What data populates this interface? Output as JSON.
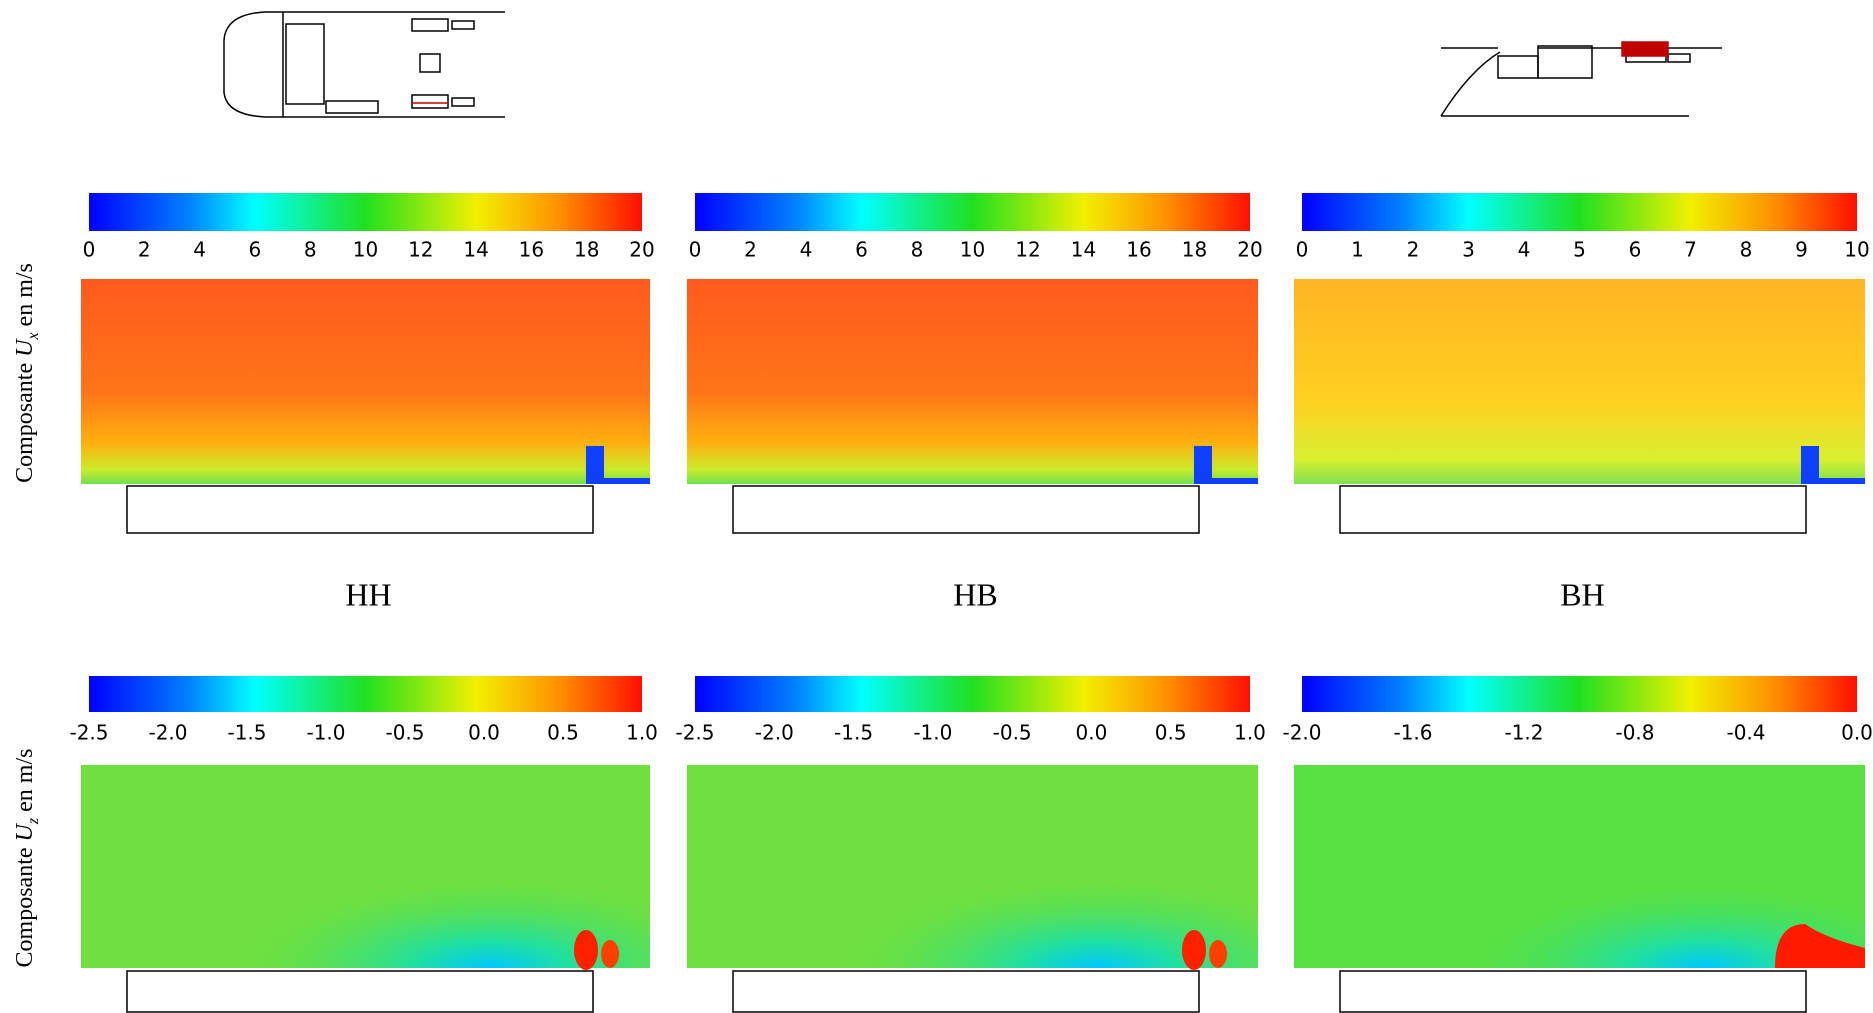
{
  "columns": [
    "HH",
    "HB",
    "BH"
  ],
  "rows": [
    {
      "label": {
        "prefix": "Composante",
        "symbol": "U",
        "subscript": "x",
        "suffix": "en m/s"
      },
      "colorbars": [
        [
          "0",
          "2",
          "4",
          "6",
          "8",
          "10",
          "12",
          "14",
          "16",
          "18",
          "20"
        ],
        [
          "0",
          "2",
          "4",
          "6",
          "8",
          "10",
          "12",
          "14",
          "16",
          "18",
          "20"
        ],
        [
          "0",
          "1",
          "2",
          "3",
          "4",
          "5",
          "6",
          "7",
          "8",
          "9",
          "10"
        ]
      ]
    },
    {
      "label": {
        "prefix": "Composante",
        "symbol": "U",
        "subscript": "z",
        "suffix": "en m/s"
      },
      "colorbars": [
        [
          "-2.5",
          "-2.0",
          "-1.5",
          "-1.0",
          "-0.5",
          "0.0",
          "0.5",
          "1.0"
        ],
        [
          "-2.5",
          "-2.0",
          "-1.5",
          "-1.0",
          "-0.5",
          "0.0",
          "0.5",
          "1.0"
        ],
        [
          "-2.0",
          "-1.6",
          "-1.2",
          "-0.8",
          "-0.4",
          "0.0"
        ]
      ]
    }
  ]
}
